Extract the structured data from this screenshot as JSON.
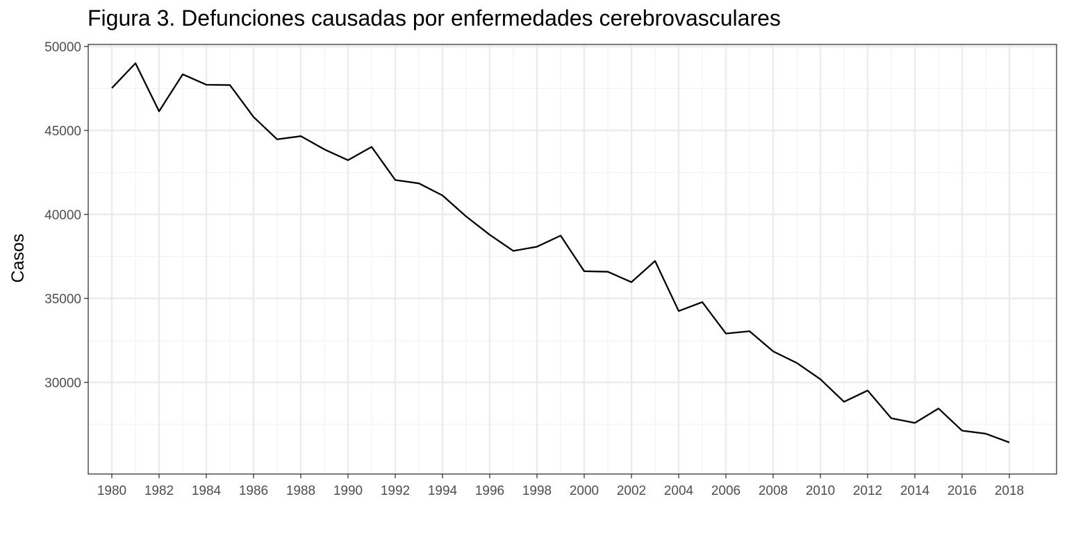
{
  "chart_data": {
    "type": "line",
    "title": "Figura 3. Defunciones causadas por enfermedades cerebrovasculares",
    "xlabel": "",
    "ylabel": "Casos",
    "x": [
      1980,
      1981,
      1982,
      1983,
      1984,
      1985,
      1986,
      1987,
      1988,
      1989,
      1990,
      1991,
      1992,
      1993,
      1994,
      1995,
      1996,
      1997,
      1998,
      1999,
      2000,
      2001,
      2002,
      2003,
      2004,
      2005,
      2006,
      2007,
      2008,
      2009,
      2010,
      2011,
      2012,
      2013,
      2014,
      2015,
      2016,
      2017,
      2018
    ],
    "series": [
      {
        "values": [
          47520,
          49000,
          46140,
          48340,
          47720,
          47700,
          45800,
          44470,
          44660,
          43870,
          43230,
          44020,
          42050,
          41850,
          41130,
          39880,
          38790,
          37830,
          38080,
          38740,
          36620,
          36590,
          35970,
          37230,
          34250,
          34780,
          32910,
          33050,
          31850,
          31160,
          30190,
          28850,
          29520,
          27870,
          27590,
          28450,
          27130,
          26950,
          26430
        ]
      }
    ],
    "xlim": [
      1979,
      2020
    ],
    "ylim": [
      24550,
      50120
    ],
    "y_ticks": [
      30000,
      35000,
      40000,
      45000,
      50000
    ],
    "y_tick_labels": [
      "30000",
      "35000",
      "40000",
      "45000",
      "50000"
    ],
    "x_ticks": [
      1980,
      1982,
      1984,
      1986,
      1988,
      1990,
      1992,
      1994,
      1996,
      1998,
      2000,
      2002,
      2004,
      2006,
      2008,
      2010,
      2012,
      2014,
      2016,
      2018
    ],
    "x_tick_labels": [
      "1980",
      "1982",
      "1984",
      "1986",
      "1988",
      "1990",
      "1992",
      "1994",
      "1996",
      "1998",
      "2000",
      "2002",
      "2004",
      "2006",
      "2008",
      "2010",
      "2012",
      "2014",
      "2016",
      "2018"
    ],
    "grid": true,
    "legend": "none",
    "colors": {
      "line": "#000000",
      "grid_major": "#ebebeb",
      "grid_minor": "#f3f3f3",
      "panel_border": "#333333",
      "tick_text": "#4d4d4d"
    }
  }
}
